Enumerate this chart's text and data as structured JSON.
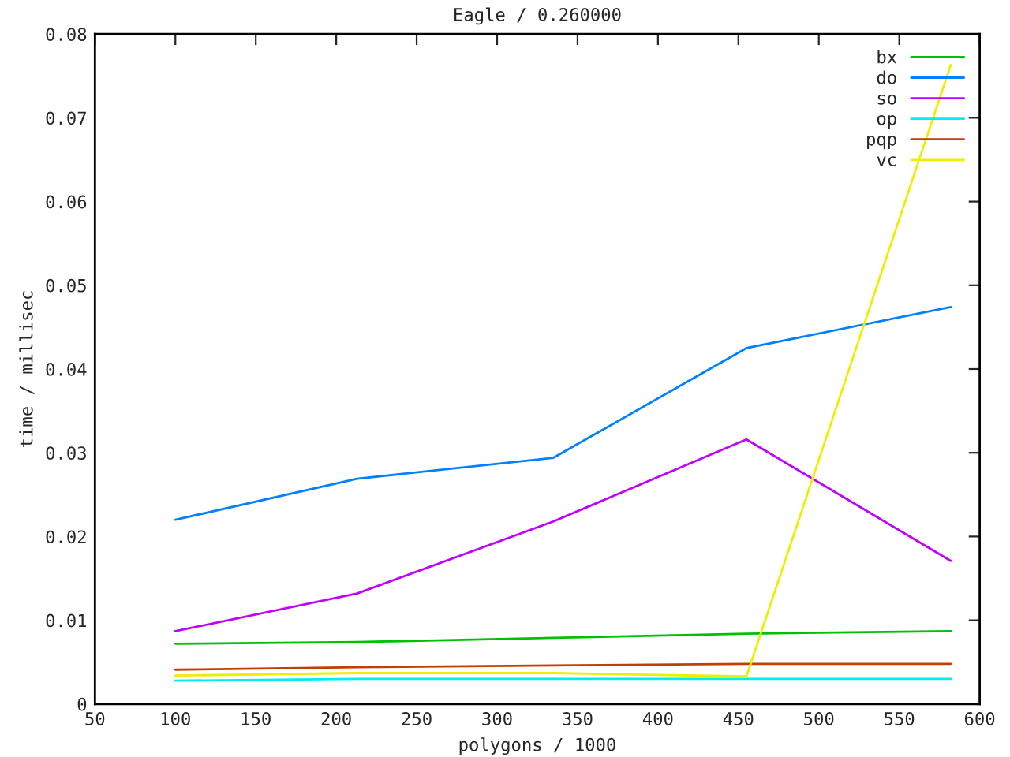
{
  "chart_data": {
    "type": "line",
    "title": "Eagle / 0.260000",
    "xlabel": "polygons / 1000",
    "ylabel": "time / millisec",
    "x": [
      100,
      213,
      335,
      455,
      582
    ],
    "xlim": [
      50,
      600
    ],
    "xticks": [
      50,
      100,
      150,
      200,
      250,
      300,
      350,
      400,
      450,
      500,
      550,
      600
    ],
    "ylim": [
      0,
      0.08
    ],
    "yticks": [
      {
        "value": 0,
        "label": "0"
      },
      {
        "value": 0.01,
        "label": "0.01"
      },
      {
        "value": 0.02,
        "label": "0.02"
      },
      {
        "value": 0.03,
        "label": "0.03"
      },
      {
        "value": 0.04,
        "label": "0.04"
      },
      {
        "value": 0.05,
        "label": "0.05"
      },
      {
        "value": 0.06,
        "label": "0.06"
      },
      {
        "value": 0.07,
        "label": "0.07"
      },
      {
        "value": 0.08,
        "label": "0.08"
      }
    ],
    "grid": false,
    "legend": "top right",
    "marker": "none",
    "line_style": "solid",
    "series": [
      {
        "name": "bx",
        "color": "#00c000",
        "values": [
          0.0072,
          0.0074,
          0.0079,
          0.0084,
          0.0087
        ]
      },
      {
        "name": "do",
        "color": "#0080ff",
        "values": [
          0.022,
          0.0269,
          0.0294,
          0.0425,
          0.0474
        ]
      },
      {
        "name": "so",
        "color": "#c000ff",
        "values": [
          0.0087,
          0.0132,
          0.0218,
          0.0316,
          0.0171
        ]
      },
      {
        "name": "op",
        "color": "#00eeee",
        "values": [
          0.0028,
          0.003,
          0.003,
          0.003,
          0.003
        ]
      },
      {
        "name": "pqp",
        "color": "#c04000",
        "values": [
          0.0041,
          0.0044,
          0.0046,
          0.0048,
          0.0048
        ]
      },
      {
        "name": "vc",
        "color": "#eeee00",
        "values": [
          0.0034,
          0.0037,
          0.0037,
          0.0033,
          0.0763
        ]
      }
    ]
  }
}
